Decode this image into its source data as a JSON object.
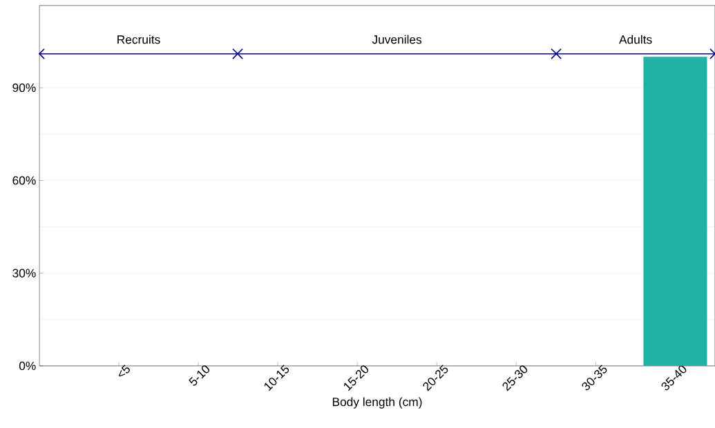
{
  "chart_data": {
    "type": "bar",
    "xlabel": "Body length (cm)",
    "categories": [
      "<5",
      "5-10",
      "10-15",
      "15-20",
      "20-25",
      "25-30",
      "30-35",
      "35-40"
    ],
    "values": [
      0,
      0,
      0,
      0,
      0,
      0,
      0,
      100
    ],
    "color": "#20b2a5",
    "ylim": [
      0,
      116.6
    ],
    "yticks": [
      {
        "value": 0,
        "label": "0%"
      },
      {
        "value": 30,
        "label": "30%"
      },
      {
        "value": 60,
        "label": "60%"
      },
      {
        "value": 90,
        "label": "90%"
      }
    ],
    "grid": "y",
    "annotations": [
      "Recruits",
      "Juveniles",
      "Adults"
    ]
  }
}
